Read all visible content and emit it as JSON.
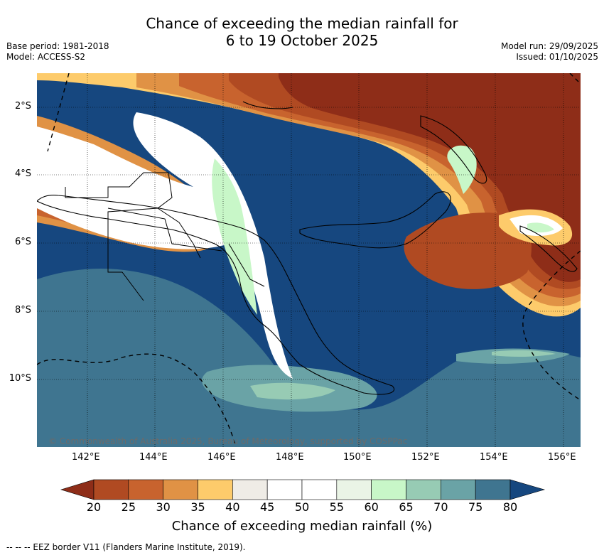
{
  "title": {
    "line1": "Chance of exceeding the median rainfall for",
    "line2": "6 to 19 October 2025"
  },
  "meta": {
    "base_period": "Base period: 1981-2018",
    "model": "Model: ACCESS-S2",
    "model_run": "Model run: 29/09/2025",
    "issued": "Issued: 01/10/2025"
  },
  "axes": {
    "lon_ticks": [
      "142°E",
      "144°E",
      "146°E",
      "148°E",
      "150°E",
      "152°E",
      "154°E",
      "156°E"
    ],
    "lat_ticks": [
      "2°S",
      "4°S",
      "6°S",
      "8°S",
      "10°S"
    ]
  },
  "copyright": "© Commonwealth of Australia 2025, Bureau of Meteorology, supported by COSPPac",
  "colorbar": {
    "labels": [
      "20",
      "25",
      "30",
      "35",
      "40",
      "45",
      "50",
      "55",
      "60",
      "65",
      "70",
      "75",
      "80"
    ],
    "colors": [
      "#b04a22",
      "#c8632e",
      "#e09245",
      "#fdcb6b",
      "#efece6",
      "#ffffff",
      "#ffffff",
      "#eaf4e6",
      "#c8f7c8",
      "#97cbb4",
      "#6aa3a6",
      "#3f7590"
    ],
    "low_color": "#8e2d18",
    "high_color": "#16477f",
    "title": "Chance of exceeding median rainfall (%)"
  },
  "footer": "--  --  -- EEZ border V11 (Flanders Marine Institute, 2019)."
}
